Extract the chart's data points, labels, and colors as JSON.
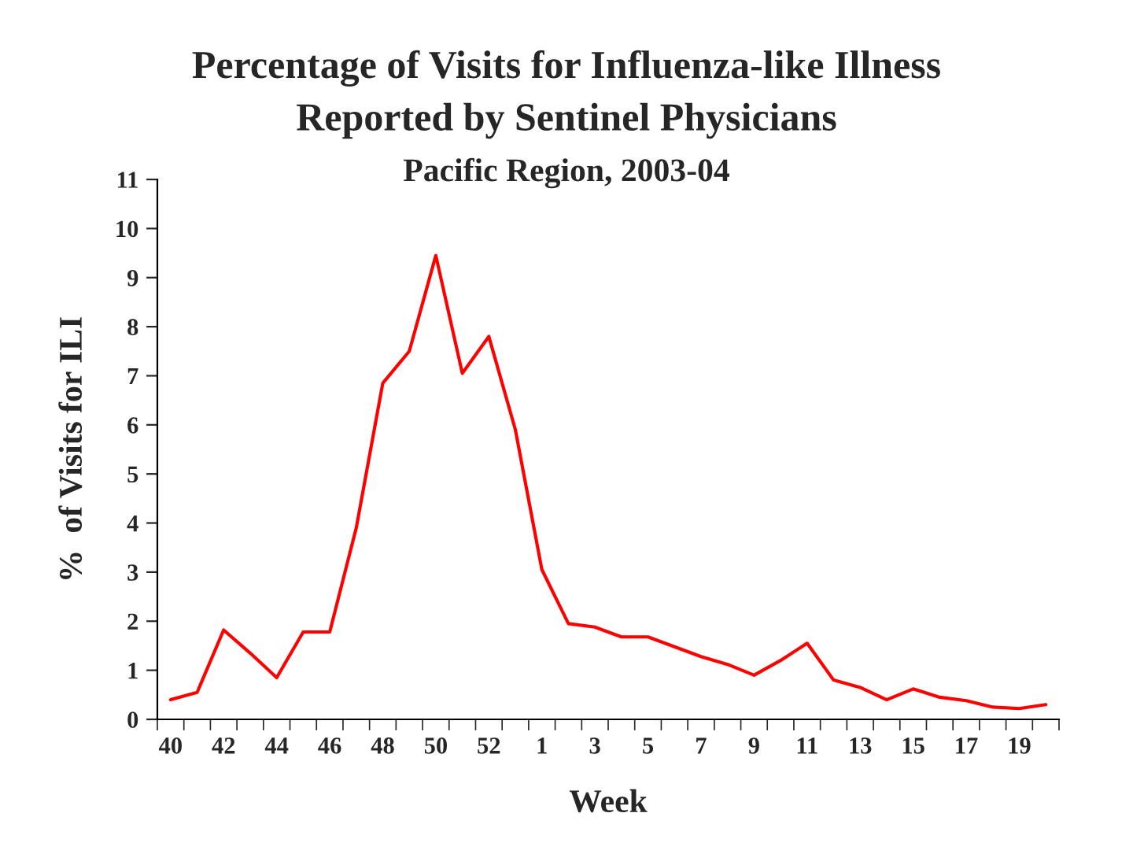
{
  "chart_data": {
    "type": "line",
    "title": "Percentage of Visits for Influenza-like Illness\nReported by Sentinel Physicians",
    "subtitle": "Pacific Region, 2003-04",
    "xlabel": "Week",
    "ylabel": "%  of Visits for ILI",
    "categories": [
      "40",
      null,
      "42",
      null,
      "44",
      null,
      "46",
      null,
      "48",
      null,
      "50",
      null,
      "52",
      null,
      "1",
      null,
      "3",
      null,
      "5",
      null,
      "7",
      null,
      "9",
      null,
      "11",
      null,
      "13",
      null,
      "15",
      null,
      "17",
      null,
      "19",
      null
    ],
    "series": [
      {
        "color": "#ff0000",
        "values": [
          0.4,
          0.55,
          1.82,
          1.35,
          0.85,
          1.78,
          1.78,
          3.9,
          6.85,
          7.5,
          9.45,
          7.05,
          7.8,
          5.9,
          3.05,
          1.95,
          1.88,
          1.68,
          1.68,
          1.48,
          1.28,
          1.12,
          0.9,
          1.2,
          1.55,
          0.8,
          0.65,
          0.4,
          0.62,
          0.45,
          0.38,
          0.25,
          0.22,
          0.3
        ]
      }
    ],
    "ylim": [
      0,
      11
    ],
    "yticks": [
      0,
      1,
      2,
      3,
      4,
      5,
      6,
      7,
      8,
      9,
      10,
      11
    ],
    "grid": false,
    "marker": "none",
    "line_style": "solid"
  }
}
